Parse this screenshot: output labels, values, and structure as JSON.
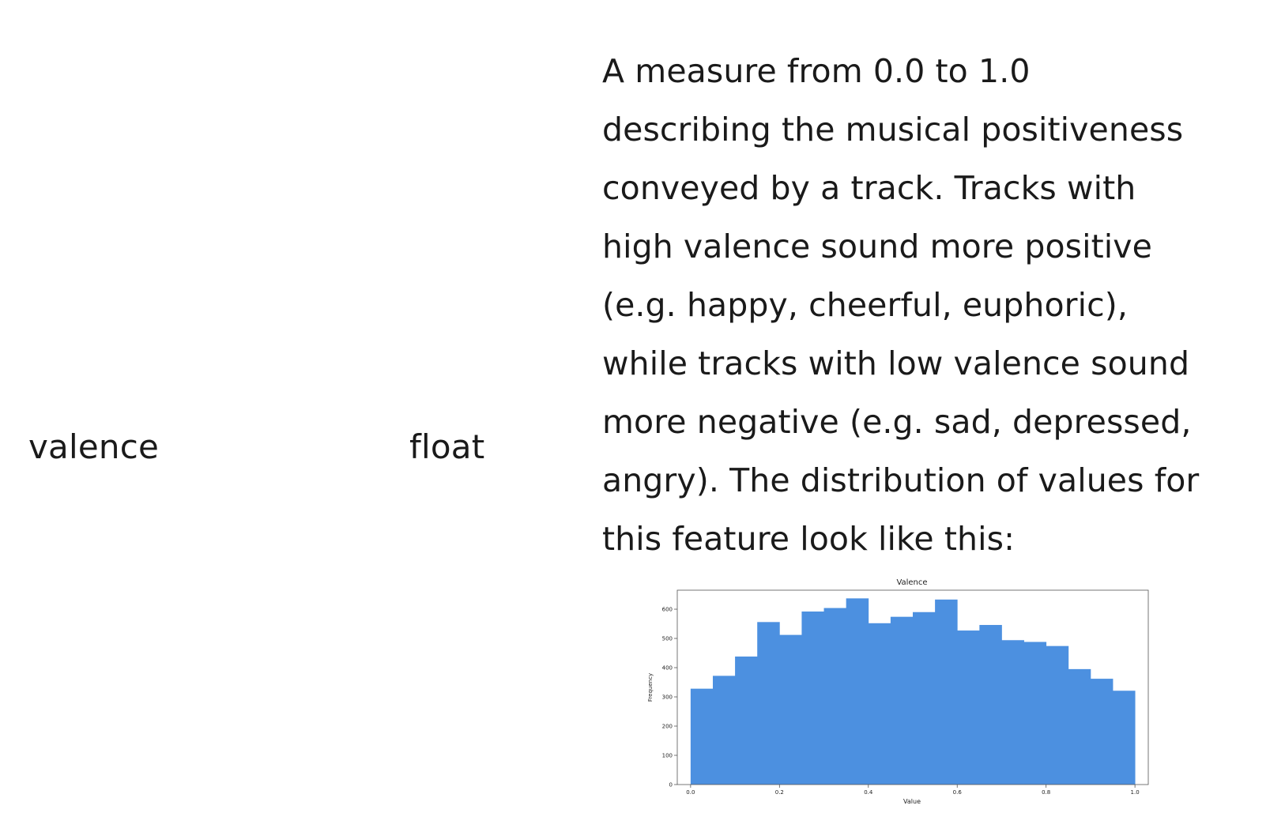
{
  "row": {
    "name": "valence",
    "type": "float",
    "description_lines": [
      "A measure from 0.0 to 1.0",
      "describing the musical positiveness",
      "conveyed by a track. Tracks with",
      "high valence sound more positive",
      "(e.g. happy, cheerful, euphoric),",
      "while tracks with low valence sound",
      "more negative (e.g. sad, depressed,",
      "angry). The distribution of values for",
      "this feature look like this:"
    ]
  },
  "chart_data": {
    "type": "bar",
    "title": "Valence",
    "xlabel": "Value",
    "ylabel": "Frequency",
    "bin_edges": [
      0.0,
      0.05,
      0.1,
      0.15,
      0.2,
      0.25,
      0.3,
      0.35,
      0.4,
      0.45,
      0.5,
      0.55,
      0.6,
      0.65,
      0.7,
      0.75,
      0.8,
      0.85,
      0.9,
      0.95,
      1.0
    ],
    "values": [
      328,
      372,
      438,
      556,
      512,
      592,
      604,
      637,
      552,
      574,
      590,
      633,
      527,
      546,
      494,
      488,
      474,
      395,
      362,
      321
    ],
    "xlim": [
      -0.03,
      1.03
    ],
    "ylim": [
      0,
      665
    ],
    "xticks": [
      0.0,
      0.2,
      0.4,
      0.6,
      0.8,
      1.0
    ],
    "xtick_labels": [
      "0.0",
      "0.2",
      "0.4",
      "0.6",
      "0.8",
      "1.0"
    ],
    "yticks": [
      0,
      100,
      200,
      300,
      400,
      500,
      600
    ],
    "ytick_labels": [
      "0",
      "100",
      "200",
      "300",
      "400",
      "500",
      "600"
    ],
    "grid": false,
    "bar_color": "#4c90e0"
  }
}
